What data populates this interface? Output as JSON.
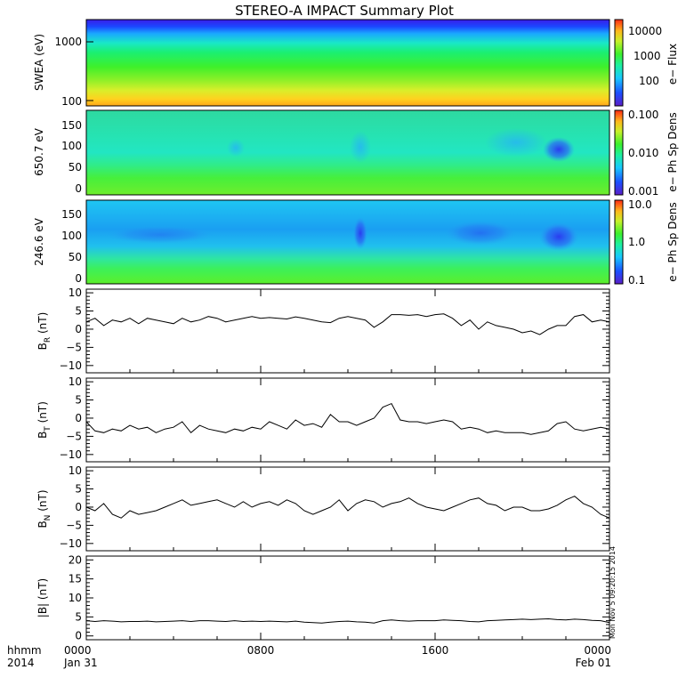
{
  "title": "STEREO-A IMPACT Summary Plot",
  "footer": {
    "hhmm": "hhmm",
    "year": "2014"
  },
  "side_stamp": "Mon Nov  5 09:20:15 2014",
  "colors": {
    "line": "#000000",
    "frame": "#000000"
  },
  "chart_data": [
    {
      "type": "heatmap",
      "ylabel": "SWEA (eV)",
      "y_scale": "log",
      "yticks": [
        "100",
        "1000"
      ],
      "colorbar": {
        "label": "e− Flux",
        "scale": "log",
        "ticks": [
          "100",
          "1000",
          "10000"
        ],
        "range": [
          30,
          25000
        ]
      }
    },
    {
      "type": "heatmap",
      "ylabel": "650.7 eV",
      "yticks": [
        "0",
        "50",
        "100",
        "150"
      ],
      "ylim": [
        -10,
        180
      ],
      "colorbar": {
        "label": "e− Ph Sp Dens",
        "scale": "log",
        "ticks": [
          "0.001",
          "0.010",
          "0.100"
        ],
        "range": [
          0.001,
          0.1
        ]
      }
    },
    {
      "type": "heatmap",
      "ylabel": "246.6 eV",
      "yticks": [
        "0",
        "50",
        "100",
        "150"
      ],
      "ylim": [
        -10,
        180
      ],
      "colorbar": {
        "label": "e− Ph Sp Dens",
        "scale": "log",
        "ticks": [
          "0.1",
          "1.0",
          "10.0"
        ],
        "range": [
          0.1,
          10
        ]
      }
    },
    {
      "type": "line",
      "ylabel": "BR (nT)",
      "ylabel_main": "B",
      "ylabel_sub": "R",
      "ylabel_unit": " (nT)",
      "ylim": [
        -12,
        11
      ],
      "yticks": [
        "−10",
        "−5",
        "0",
        "5",
        "10"
      ],
      "x_hours": [
        0,
        0.4,
        0.8,
        1.2,
        1.6,
        2,
        2.4,
        2.8,
        3.2,
        3.6,
        4,
        4.4,
        4.8,
        5.2,
        5.6,
        6,
        6.4,
        6.8,
        7.2,
        7.6,
        8,
        8.4,
        8.8,
        9.2,
        9.6,
        10,
        10.4,
        10.8,
        11.2,
        11.6,
        12,
        12.4,
        12.8,
        13.2,
        13.6,
        14,
        14.4,
        14.8,
        15.2,
        15.6,
        16,
        16.4,
        16.8,
        17.2,
        17.6,
        18,
        18.4,
        18.8,
        19.2,
        19.6,
        20,
        20.4,
        20.8,
        21.2,
        21.6,
        22,
        22.4,
        22.8,
        23.2,
        23.6,
        24
      ],
      "values": [
        2,
        3,
        1,
        2.5,
        2,
        3,
        1.5,
        3,
        2.5,
        2,
        1.5,
        3,
        2,
        2.5,
        3.5,
        3,
        2,
        2.5,
        3,
        3.5,
        3,
        3.2,
        3,
        2.8,
        3.4,
        3,
        2.5,
        2,
        1.8,
        3,
        3.5,
        3,
        2.5,
        0.5,
        2,
        4,
        4,
        3.8,
        4,
        3.5,
        4,
        4.2,
        3,
        1,
        2.5,
        0,
        2,
        1,
        0.5,
        0,
        -1,
        -0.5,
        -1.5,
        0,
        1,
        1,
        3.5,
        4,
        2,
        2.5,
        2
      ]
    },
    {
      "type": "line",
      "ylabel": "BT (nT)",
      "ylabel_main": "B",
      "ylabel_sub": "T",
      "ylabel_unit": " (nT)",
      "ylim": [
        -12,
        11
      ],
      "yticks": [
        "−10",
        "−5",
        "0",
        "5",
        "10"
      ],
      "x_hours": [
        0,
        0.4,
        0.8,
        1.2,
        1.6,
        2,
        2.4,
        2.8,
        3.2,
        3.6,
        4,
        4.4,
        4.8,
        5.2,
        5.6,
        6,
        6.4,
        6.8,
        7.2,
        7.6,
        8,
        8.4,
        8.8,
        9.2,
        9.6,
        10,
        10.4,
        10.8,
        11.2,
        11.6,
        12,
        12.4,
        12.8,
        13.2,
        13.6,
        14,
        14.4,
        14.8,
        15.2,
        15.6,
        16,
        16.4,
        16.8,
        17.2,
        17.6,
        18,
        18.4,
        18.8,
        19.2,
        19.6,
        20,
        20.4,
        20.8,
        21.2,
        21.6,
        22,
        22.4,
        22.8,
        23.2,
        23.6,
        24
      ],
      "values": [
        -1,
        -3.5,
        -4,
        -3,
        -3.5,
        -2,
        -3,
        -2.5,
        -4,
        -3,
        -2.5,
        -1,
        -4,
        -2,
        -3,
        -3.5,
        -4,
        -3,
        -3.5,
        -2.5,
        -3,
        -1,
        -2,
        -3,
        -0.5,
        -2,
        -1.5,
        -2.5,
        1,
        -1,
        -1,
        -2,
        -1,
        0,
        3,
        4,
        -0.5,
        -1,
        -1,
        -1.5,
        -1,
        -0.5,
        -1,
        -3,
        -2.5,
        -3,
        -4,
        -3.5,
        -4,
        -4,
        -4,
        -4.5,
        -4,
        -3.5,
        -1.5,
        -1,
        -3,
        -3.5,
        -3,
        -2.5,
        -3
      ]
    },
    {
      "type": "line",
      "ylabel": "BN (nT)",
      "ylabel_main": "B",
      "ylabel_sub": "N",
      "ylabel_unit": " (nT)",
      "ylim": [
        -12,
        11
      ],
      "yticks": [
        "−10",
        "−5",
        "0",
        "5",
        "10"
      ],
      "x_hours": [
        0,
        0.4,
        0.8,
        1.2,
        1.6,
        2,
        2.4,
        2.8,
        3.2,
        3.6,
        4,
        4.4,
        4.8,
        5.2,
        5.6,
        6,
        6.4,
        6.8,
        7.2,
        7.6,
        8,
        8.4,
        8.8,
        9.2,
        9.6,
        10,
        10.4,
        10.8,
        11.2,
        11.6,
        12,
        12.4,
        12.8,
        13.2,
        13.6,
        14,
        14.4,
        14.8,
        15.2,
        15.6,
        16,
        16.4,
        16.8,
        17.2,
        17.6,
        18,
        18.4,
        18.8,
        19.2,
        19.6,
        20,
        20.4,
        20.8,
        21.2,
        21.6,
        22,
        22.4,
        22.8,
        23.2,
        23.6,
        24
      ],
      "values": [
        0,
        -1,
        1,
        -2,
        -3,
        -1,
        -2,
        -1.5,
        -1,
        0,
        1,
        2,
        0.5,
        1,
        1.5,
        2,
        1,
        0,
        1.5,
        0,
        1,
        1.5,
        0.5,
        2,
        1,
        -1,
        -2,
        -1,
        0,
        2,
        -1,
        1,
        2,
        1.5,
        0,
        1,
        1.5,
        2.5,
        1,
        0,
        -0.5,
        -1,
        0,
        1,
        2,
        2.5,
        1,
        0.5,
        -1,
        0,
        0,
        -1,
        -1,
        -0.5,
        0.5,
        2,
        3,
        1,
        0,
        -2,
        -3
      ]
    },
    {
      "type": "line",
      "ylabel": "|B| (nT)",
      "ylabel_main": "|B|",
      "ylabel_sub": "",
      "ylabel_unit": " (nT)",
      "ylim": [
        -1,
        21
      ],
      "yticks": [
        "0",
        "5",
        "10",
        "15",
        "20"
      ],
      "x_hours": [
        0,
        0.4,
        0.8,
        1.2,
        1.6,
        2,
        2.4,
        2.8,
        3.2,
        3.6,
        4,
        4.4,
        4.8,
        5.2,
        5.6,
        6,
        6.4,
        6.8,
        7.2,
        7.6,
        8,
        8.4,
        8.8,
        9.2,
        9.6,
        10,
        10.4,
        10.8,
        11.2,
        11.6,
        12,
        12.4,
        12.8,
        13.2,
        13.6,
        14,
        14.4,
        14.8,
        15.2,
        15.6,
        16,
        16.4,
        16.8,
        17.2,
        17.6,
        18,
        18.4,
        18.8,
        19.2,
        19.6,
        20,
        20.4,
        20.8,
        21.2,
        21.6,
        22,
        22.4,
        22.8,
        23.2,
        23.6,
        24
      ],
      "values": [
        4,
        3.8,
        4,
        3.9,
        3.7,
        3.8,
        3.8,
        3.9,
        3.7,
        3.8,
        3.9,
        4,
        3.8,
        4,
        4,
        3.9,
        3.8,
        4,
        3.8,
        3.9,
        3.8,
        3.9,
        3.8,
        3.7,
        3.9,
        3.6,
        3.5,
        3.4,
        3.6,
        3.8,
        3.9,
        3.7,
        3.6,
        3.4,
        4,
        4.2,
        4,
        3.9,
        4,
        4,
        4,
        4.2,
        4.1,
        4,
        3.8,
        3.7,
        4,
        4.1,
        4.2,
        4.3,
        4.4,
        4.3,
        4.4,
        4.5,
        4.3,
        4.2,
        4.4,
        4.3,
        4.1,
        4,
        3.5
      ]
    }
  ],
  "xaxis": {
    "ticks": [
      {
        "hour": 0,
        "top": "0000",
        "bottom": "Jan 31"
      },
      {
        "hour": 8,
        "top": "0800",
        "bottom": ""
      },
      {
        "hour": 16,
        "top": "1600",
        "bottom": ""
      },
      {
        "hour": 24,
        "top": "0000",
        "bottom": "Feb 01"
      }
    ],
    "range_hours": [
      0,
      24
    ]
  }
}
